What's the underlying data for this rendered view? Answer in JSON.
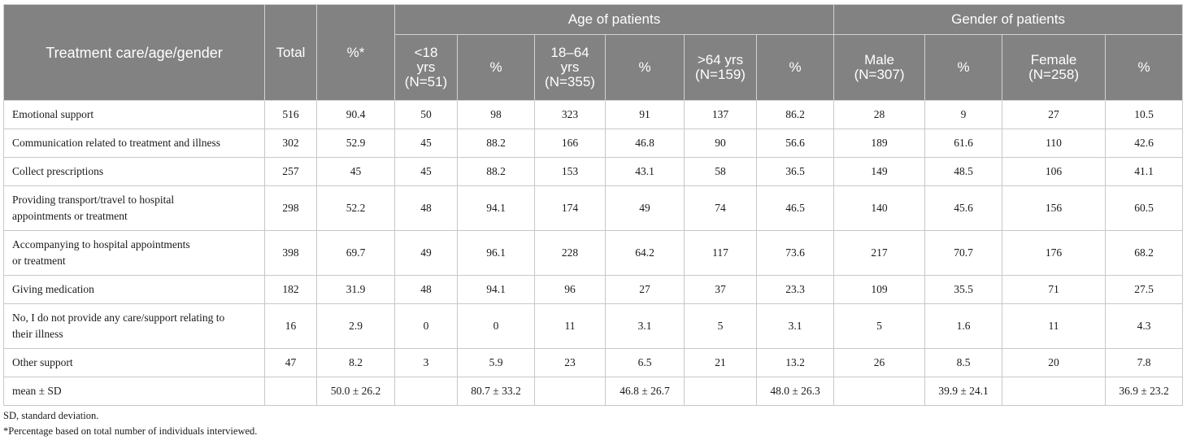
{
  "table": {
    "header": {
      "row_label": "Treatment care/age/gender",
      "total": "Total",
      "pct_total": "%*",
      "age_group": "Age of patients",
      "gender_group": "Gender of patients",
      "age_cols": [
        {
          "label_1": "<18",
          "label_2": "yrs",
          "label_3": "(N=51)",
          "pct": "%"
        },
        {
          "label_1": "18–64",
          "label_2": "yrs",
          "label_3": "(N=355)",
          "pct": "%"
        },
        {
          "label_1": ">64 yrs",
          "label_2": "(N=159)",
          "pct": "%"
        }
      ],
      "gender_cols": [
        {
          "label_1": "Male",
          "label_2": "(N=307)",
          "pct": "%"
        },
        {
          "label_1": "Female",
          "label_2": "(N=258)",
          "pct": "%"
        }
      ]
    },
    "rows": [
      {
        "label": [
          "Emotional support"
        ],
        "cells": [
          "516",
          "90.4",
          "50",
          "98",
          "323",
          "91",
          "137",
          "86.2",
          "28",
          "9",
          "27",
          "10.5"
        ]
      },
      {
        "label": [
          "Communication related to treatment and illness"
        ],
        "cells": [
          "302",
          "52.9",
          "45",
          "88.2",
          "166",
          "46.8",
          "90",
          "56.6",
          "189",
          "61.6",
          "110",
          "42.6"
        ]
      },
      {
        "label": [
          "Collect prescriptions"
        ],
        "cells": [
          "257",
          "45",
          "45",
          "88.2",
          "153",
          "43.1",
          "58",
          "36.5",
          "149",
          "48.5",
          "106",
          "41.1"
        ]
      },
      {
        "label": [
          "Providing transport/travel to hospital",
          "appointments or treatment"
        ],
        "cells": [
          "298",
          "52.2",
          "48",
          "94.1",
          "174",
          "49",
          "74",
          "46.5",
          "140",
          "45.6",
          "156",
          "60.5"
        ]
      },
      {
        "label": [
          "Accompanying to hospital appointments",
          "or treatment"
        ],
        "cells": [
          "398",
          "69.7",
          "49",
          "96.1",
          "228",
          "64.2",
          "117",
          "73.6",
          "217",
          "70.7",
          "176",
          "68.2"
        ]
      },
      {
        "label": [
          "Giving medication"
        ],
        "cells": [
          "182",
          "31.9",
          "48",
          "94.1",
          "96",
          "27",
          "37",
          "23.3",
          "109",
          "35.5",
          "71",
          "27.5"
        ]
      },
      {
        "label": [
          "No, I do not provide any care/support relating to",
          "their illness"
        ],
        "cells": [
          "16",
          "2.9",
          "0",
          "0",
          "11",
          "3.1",
          "5",
          "3.1",
          "5",
          "1.6",
          "11",
          "4.3"
        ]
      },
      {
        "label": [
          "Other support"
        ],
        "cells": [
          "47",
          "8.2",
          "3",
          "5.9",
          "23",
          "6.5",
          "21",
          "13.2",
          "26",
          "8.5",
          "20",
          "7.8"
        ]
      },
      {
        "label": [
          "mean ± SD"
        ],
        "cells": [
          "",
          "50.0 ± 26.2",
          "",
          "80.7 ± 33.2",
          "",
          "46.8 ± 26.7",
          "",
          "48.0 ± 26.3",
          "",
          "39.9 ± 24.1",
          "",
          "36.9 ± 23.2"
        ]
      }
    ]
  },
  "footnotes": {
    "abbrev": "SD, standard deviation.",
    "note": "*Percentage based on total number of individuals interviewed."
  },
  "colors": {
    "header_bg": "#828282",
    "header_text": "#ffffff",
    "grid": "#c8c8c8"
  }
}
